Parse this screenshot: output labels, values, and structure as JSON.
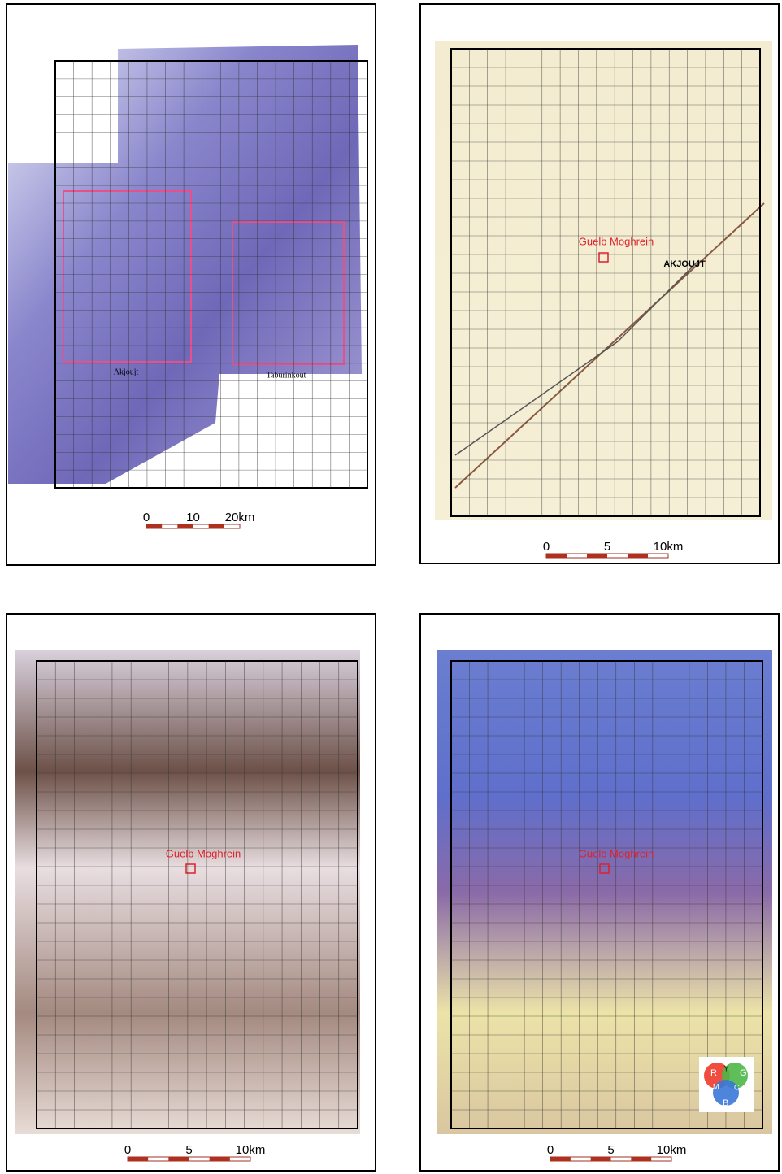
{
  "panels": [
    {
      "labels": [
        "Akjoujt",
        "Taburinkout"
      ],
      "scale": [
        "0",
        "10",
        "20km"
      ]
    },
    {
      "labels": [
        "Guelb Moghrein",
        "AKJOUJT"
      ],
      "scale": [
        "0",
        "5",
        "10km"
      ]
    },
    {
      "labels": [
        "Guelb Moghrein"
      ],
      "scale": [
        "0",
        "5",
        "10km"
      ]
    },
    {
      "labels": [
        "Guelb Moghrein"
      ],
      "scale": [
        "0",
        "5",
        "10km"
      ],
      "legend": [
        "R",
        "Y",
        "G",
        "M",
        "C",
        "B"
      ]
    }
  ]
}
